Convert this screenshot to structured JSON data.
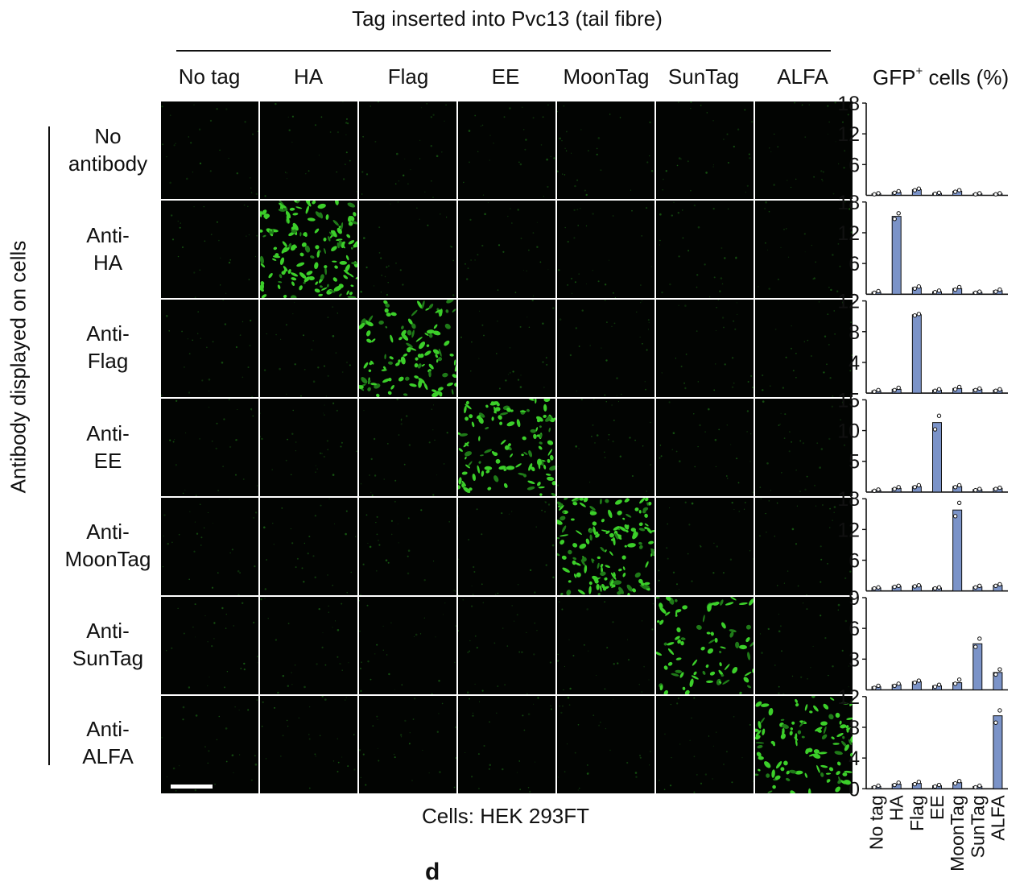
{
  "figure": {
    "top_title": "Tag inserted into Pvc13 (tail fibre)",
    "side_title": "Antibody displayed on cells",
    "bottom_caption": "Cells: HEK 293FT",
    "panel_letter": "d",
    "gfp_title_main": "GFP",
    "gfp_title_sup": "+",
    "gfp_title_rest": " cells (%)"
  },
  "columns": [
    "No tag",
    "HA",
    "Flag",
    "EE",
    "MoonTag",
    "SunTag",
    "ALFA"
  ],
  "rows": [
    {
      "line1": "No",
      "line2": "antibody"
    },
    {
      "line1": "Anti-",
      "line2": "HA"
    },
    {
      "line1": "Anti-",
      "line2": "Flag"
    },
    {
      "line1": "Anti-",
      "line2": "EE"
    },
    {
      "line1": "Anti-",
      "line2": "MoonTag"
    },
    {
      "line1": "Anti-",
      "line2": "SunTag"
    },
    {
      "line1": "Anti-",
      "line2": "ALFA"
    }
  ],
  "image_colors": {
    "background": "#020402",
    "signal": "#3ccf2a",
    "dim": "#1f7a18"
  },
  "image_grid": {
    "bright_cells": [
      [
        1,
        1
      ],
      [
        2,
        2
      ],
      [
        3,
        3
      ],
      [
        4,
        4
      ],
      [
        5,
        5
      ],
      [
        6,
        6
      ]
    ],
    "bright_density": [
      0,
      1.0,
      0.75,
      0.8,
      1.0,
      0.55,
      0.7
    ]
  },
  "chart_data": {
    "type": "bar",
    "title": "GFP+ cells (%)",
    "categories": [
      "No tag",
      "HA",
      "Flag",
      "EE",
      "MoonTag",
      "SunTag",
      "ALFA"
    ],
    "bar_color": "#7b93c8",
    "panels": [
      {
        "row": "No antibody",
        "ylim": [
          0,
          18
        ],
        "yticks": [
          6,
          12,
          18
        ],
        "show_zero": false,
        "values": [
          0.3,
          0.6,
          1.1,
          0.4,
          0.8,
          0.3,
          0.3
        ],
        "points": [
          [
            0.2,
            0.4
          ],
          [
            0.5,
            0.8
          ],
          [
            1.0,
            1.3
          ],
          [
            0.3,
            0.5
          ],
          [
            0.7,
            1.0
          ],
          [
            0.2,
            0.4
          ],
          [
            0.2,
            0.4
          ]
        ]
      },
      {
        "row": "Anti-HA",
        "ylim": [
          0,
          18
        ],
        "yticks": [
          6,
          12,
          18
        ],
        "show_zero": false,
        "values": [
          0.4,
          15.2,
          1.3,
          0.5,
          1.1,
          0.4,
          0.7
        ],
        "points": [
          [
            0.3,
            0.6
          ],
          [
            14.7,
            15.8
          ],
          [
            1.1,
            1.5
          ],
          [
            0.4,
            0.7
          ],
          [
            0.9,
            1.4
          ],
          [
            0.3,
            0.5
          ],
          [
            0.5,
            0.9
          ]
        ]
      },
      {
        "row": "Anti-Flag",
        "ylim": [
          0,
          12
        ],
        "yticks": [
          4,
          8,
          12
        ],
        "show_zero": false,
        "values": [
          0.3,
          0.5,
          10.2,
          0.4,
          0.6,
          0.5,
          0.4
        ],
        "points": [
          [
            0.2,
            0.4
          ],
          [
            0.4,
            0.7
          ],
          [
            10.1,
            10.3
          ],
          [
            0.3,
            0.5
          ],
          [
            0.5,
            0.8
          ],
          [
            0.4,
            0.6
          ],
          [
            0.3,
            0.5
          ]
        ]
      },
      {
        "row": "Anti-EE",
        "ylim": [
          0,
          15
        ],
        "yticks": [
          5,
          10,
          15
        ],
        "show_zero": false,
        "values": [
          0.3,
          0.6,
          0.9,
          11.3,
          0.9,
          0.4,
          0.6
        ],
        "points": [
          [
            0.2,
            0.4
          ],
          [
            0.5,
            0.8
          ],
          [
            0.8,
            1.1
          ],
          [
            10.2,
            12.4
          ],
          [
            0.8,
            1.1
          ],
          [
            0.3,
            0.5
          ],
          [
            0.5,
            0.7
          ]
        ]
      },
      {
        "row": "Anti-MoonTag",
        "ylim": [
          0,
          18
        ],
        "yticks": [
          6,
          12,
          18
        ],
        "show_zero": false,
        "values": [
          0.6,
          0.9,
          1.0,
          0.6,
          15.8,
          0.8,
          1.1
        ],
        "points": [
          [
            0.5,
            0.7
          ],
          [
            0.8,
            1.0
          ],
          [
            0.9,
            1.1
          ],
          [
            0.5,
            0.7
          ],
          [
            14.6,
            17.2
          ],
          [
            0.7,
            1.0
          ],
          [
            1.0,
            1.3
          ]
        ]
      },
      {
        "row": "Anti-SunTag",
        "ylim": [
          0,
          9
        ],
        "yticks": [
          3,
          6,
          9
        ],
        "show_zero": false,
        "values": [
          0.3,
          0.5,
          0.8,
          0.4,
          0.7,
          4.5,
          1.7
        ],
        "points": [
          [
            0.2,
            0.4
          ],
          [
            0.4,
            0.6
          ],
          [
            0.7,
            0.9
          ],
          [
            0.3,
            0.5
          ],
          [
            0.6,
            1.0
          ],
          [
            4.2,
            5.0
          ],
          [
            1.5,
            2.0
          ]
        ]
      },
      {
        "row": "Anti-ALFA",
        "ylim": [
          0,
          12
        ],
        "yticks": [
          0,
          4,
          8,
          12
        ],
        "show_zero": true,
        "values": [
          0.3,
          0.6,
          0.7,
          0.4,
          0.8,
          0.3,
          9.5
        ],
        "points": [
          [
            0.2,
            0.4
          ],
          [
            0.5,
            0.8
          ],
          [
            0.6,
            0.9
          ],
          [
            0.3,
            0.5
          ],
          [
            0.7,
            1.0
          ],
          [
            0.2,
            0.4
          ],
          [
            8.6,
            10.2
          ]
        ]
      }
    ]
  }
}
